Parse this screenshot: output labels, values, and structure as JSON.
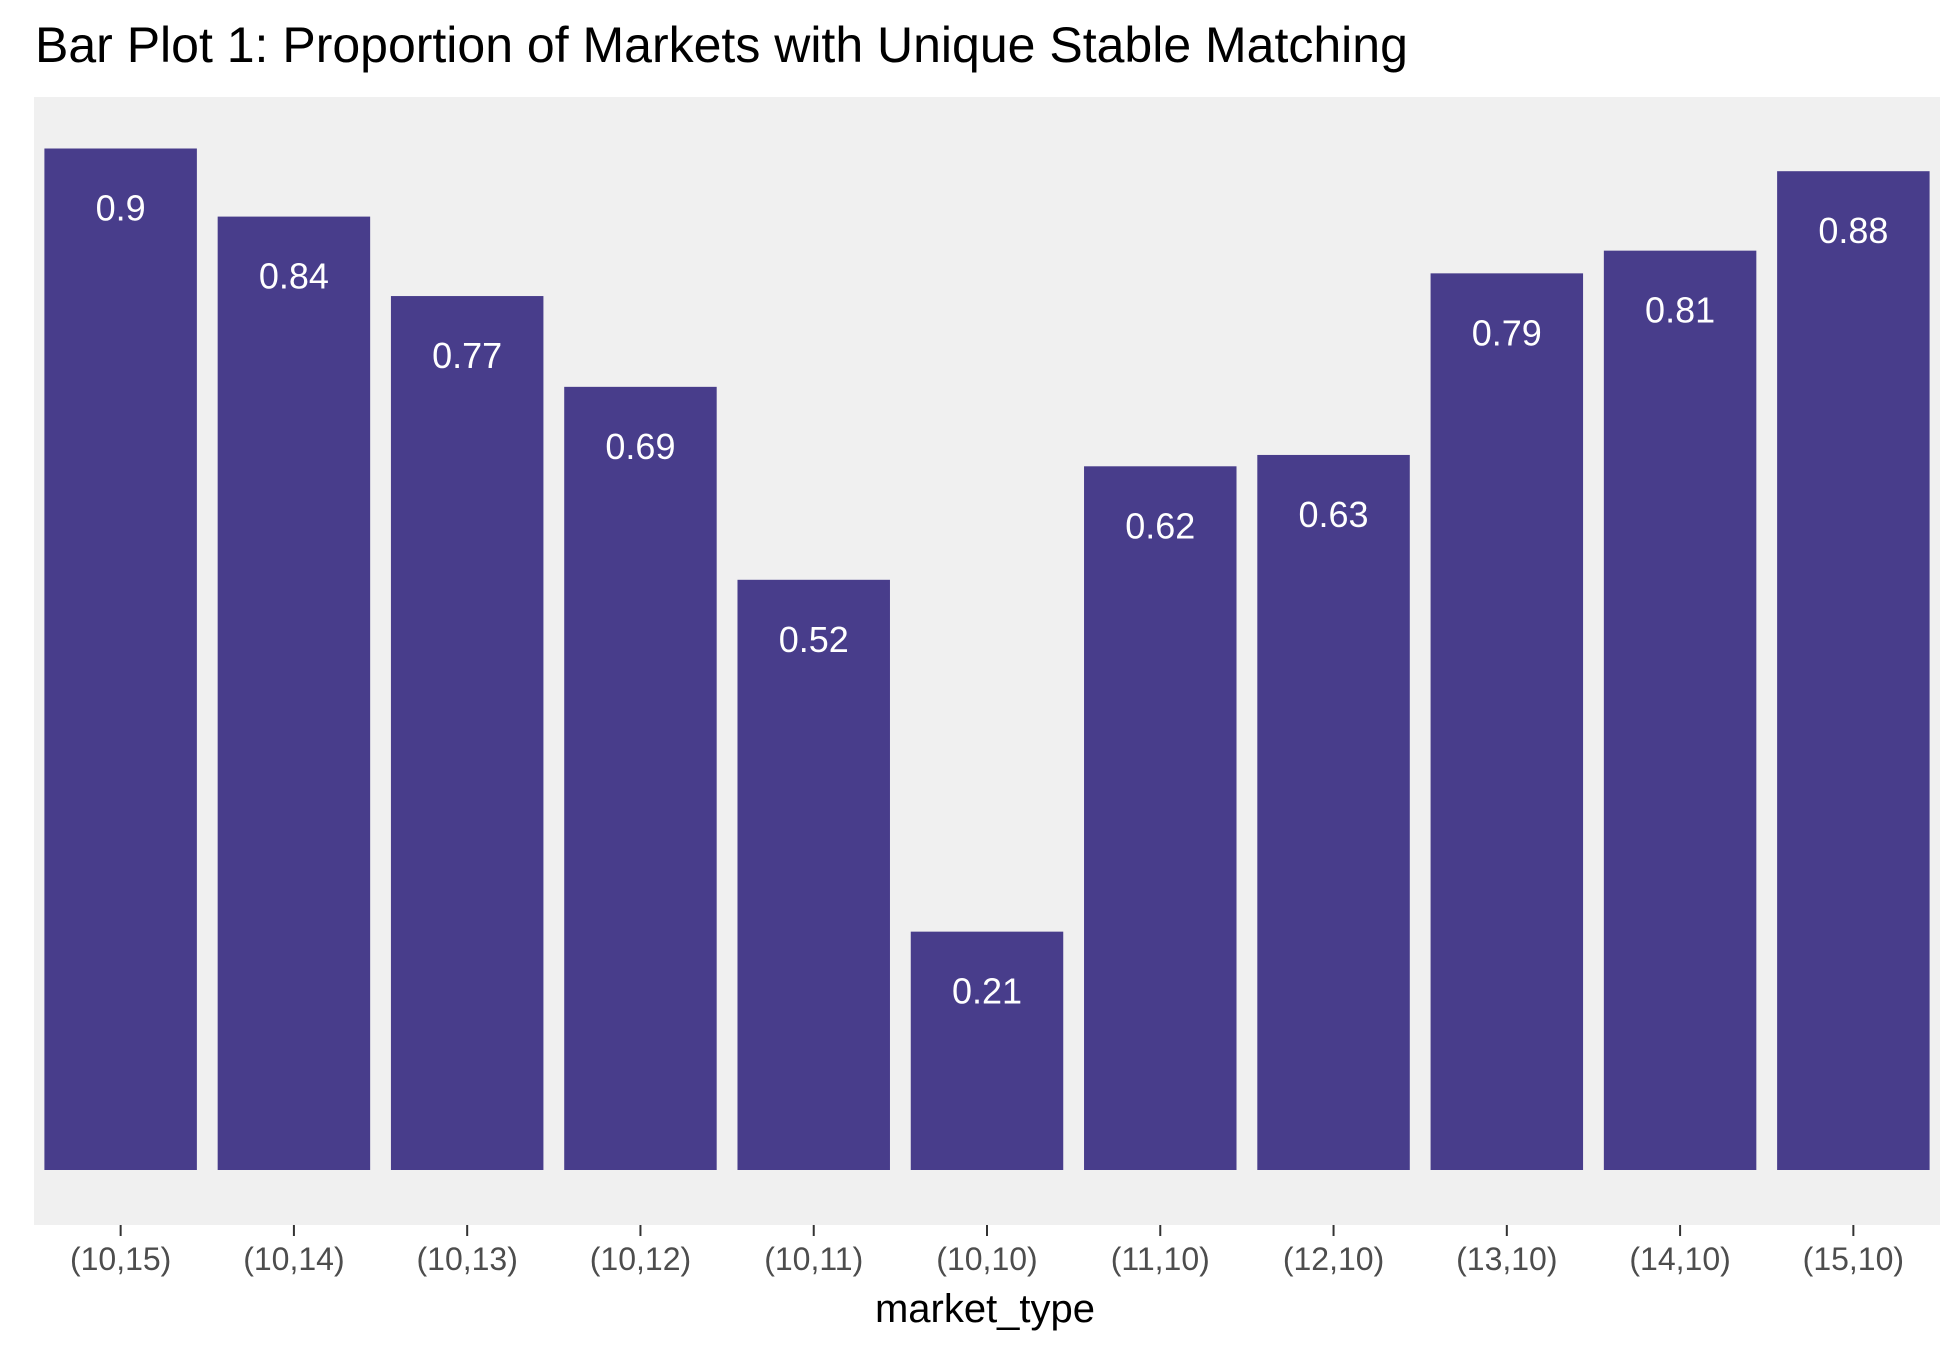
{
  "chart_data": {
    "type": "bar",
    "title": "Bar Plot 1: Proportion of Markets with Unique Stable Matching",
    "xlabel": "market_type",
    "ylabel": "",
    "categories": [
      "(10,15)",
      "(10,14)",
      "(10,13)",
      "(10,12)",
      "(10,11)",
      "(10,10)",
      "(11,10)",
      "(12,10)",
      "(13,10)",
      "(14,10)",
      "(15,10)"
    ],
    "values": [
      0.9,
      0.84,
      0.77,
      0.69,
      0.52,
      0.21,
      0.62,
      0.63,
      0.79,
      0.81,
      0.88
    ],
    "data_labels": [
      "0.9",
      "0.84",
      "0.77",
      "0.69",
      "0.52",
      "0.21",
      "0.62",
      "0.63",
      "0.79",
      "0.81",
      "0.88"
    ],
    "ylim": [
      0,
      0.9
    ],
    "y_axis_shown": false,
    "grid": false,
    "legend": "none",
    "colors": {
      "bar": "#483d8b",
      "panel_background": "#f0f0f0",
      "bar_label": "#ffffff"
    }
  }
}
